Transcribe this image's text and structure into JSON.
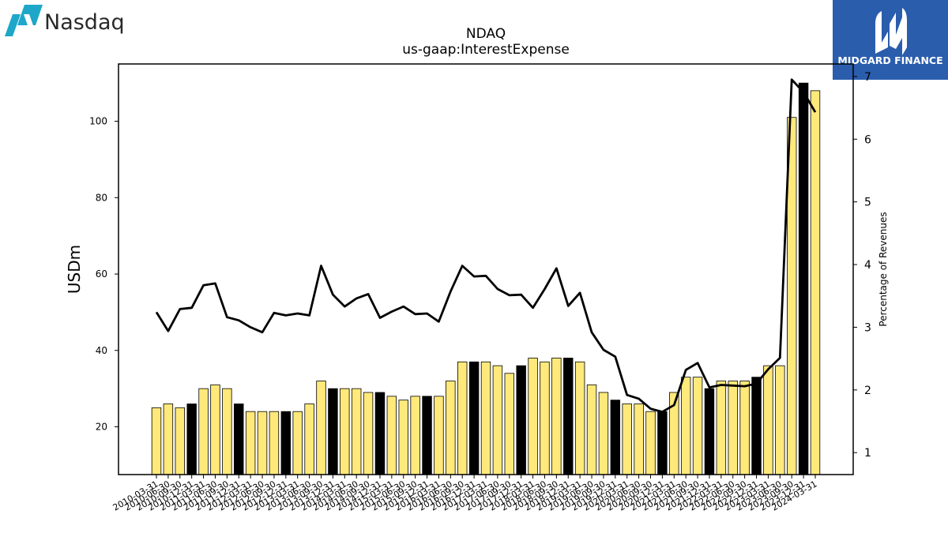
{
  "logos": {
    "left_text": "Nasdaq",
    "right_text": "MIDGARD FINANCE",
    "left_color": "#1ea7c9",
    "right_bg": "#2b5dad"
  },
  "chart_data": {
    "type": "bar",
    "title": "NDAQ",
    "subtitle": "us-gaap:InterestExpense",
    "ylabel": "USDm",
    "ylabel_right": "Percentage of Revenues",
    "ylim": [
      7.5,
      115
    ],
    "ylim_right": [
      0.65,
      7.2
    ],
    "yticks": [
      20,
      40,
      60,
      80,
      100
    ],
    "yticks_right": [
      1,
      2,
      3,
      4,
      5,
      6,
      7
    ],
    "bar_color_default": "#ffe97a",
    "bar_color_highlight": "#000000",
    "line_color": "#000000",
    "categories": [
      "2010-03-31",
      "2010-06-30",
      "2010-09-30",
      "2010-12-31",
      "2011-03-31",
      "2011-06-30",
      "2011-09-30",
      "2011-12-31",
      "2012-03-31",
      "2012-06-30",
      "2012-09-30",
      "2012-12-31",
      "2013-03-31",
      "2013-06-30",
      "2013-09-30",
      "2013-12-31",
      "2014-03-31",
      "2014-06-30",
      "2014-09-30",
      "2014-12-31",
      "2015-03-31",
      "2015-06-30",
      "2015-09-30",
      "2015-12-31",
      "2016-03-31",
      "2016-06-30",
      "2016-09-30",
      "2016-12-31",
      "2017-03-31",
      "2017-06-30",
      "2017-09-30",
      "2017-12-31",
      "2018-03-31",
      "2018-06-30",
      "2018-09-30",
      "2018-12-31",
      "2019-03-31",
      "2019-06-30",
      "2019-09-30",
      "2019-12-31",
      "2020-03-31",
      "2020-06-30",
      "2020-09-30",
      "2020-12-31",
      "2021-03-31",
      "2021-06-30",
      "2021-09-30",
      "2021-12-31",
      "2022-03-31",
      "2022-06-30",
      "2022-09-30",
      "2022-12-31",
      "2023-03-31",
      "2023-06-30",
      "2023-09-30",
      "2023-12-31",
      "2024-03-31"
    ],
    "series": [
      {
        "type": "bar",
        "values": [
          25,
          26,
          25,
          26,
          30,
          31,
          30,
          26,
          24,
          24,
          24,
          24,
          24,
          26,
          32,
          30,
          30,
          30,
          29,
          29,
          28,
          27,
          28,
          28,
          28,
          32,
          37,
          37,
          37,
          36,
          34,
          36,
          38,
          37,
          38,
          38,
          37,
          31,
          29,
          27,
          26,
          26,
          24,
          24,
          29,
          33,
          33,
          30,
          32,
          32,
          32,
          33,
          36,
          36,
          101,
          110,
          108
        ],
        "highlight": [
          false,
          false,
          false,
          true,
          false,
          false,
          false,
          true,
          false,
          false,
          false,
          true,
          false,
          false,
          false,
          true,
          false,
          false,
          false,
          true,
          false,
          false,
          false,
          true,
          false,
          false,
          false,
          true,
          false,
          false,
          false,
          true,
          false,
          false,
          false,
          true,
          false,
          false,
          false,
          true,
          false,
          false,
          false,
          true,
          false,
          false,
          false,
          true,
          false,
          false,
          false,
          true,
          false,
          false,
          false,
          true,
          false
        ]
      },
      {
        "type": "line",
        "axis": "right",
        "values": [
          3.24,
          2.94,
          3.29,
          3.31,
          3.67,
          3.7,
          3.16,
          3.11,
          3.0,
          2.92,
          3.23,
          3.19,
          3.22,
          3.19,
          3.98,
          3.52,
          3.33,
          3.46,
          3.53,
          3.15,
          3.25,
          3.33,
          3.21,
          3.22,
          3.09,
          3.57,
          3.98,
          3.81,
          3.82,
          3.61,
          3.51,
          3.52,
          3.31,
          3.61,
          3.94,
          3.34,
          3.55,
          2.92,
          2.64,
          2.53,
          1.92,
          1.86,
          1.7,
          1.65,
          1.76,
          2.32,
          2.43,
          2.04,
          2.08,
          2.07,
          2.06,
          2.1,
          2.33,
          2.51,
          6.95,
          6.75,
          6.43
        ]
      }
    ]
  }
}
